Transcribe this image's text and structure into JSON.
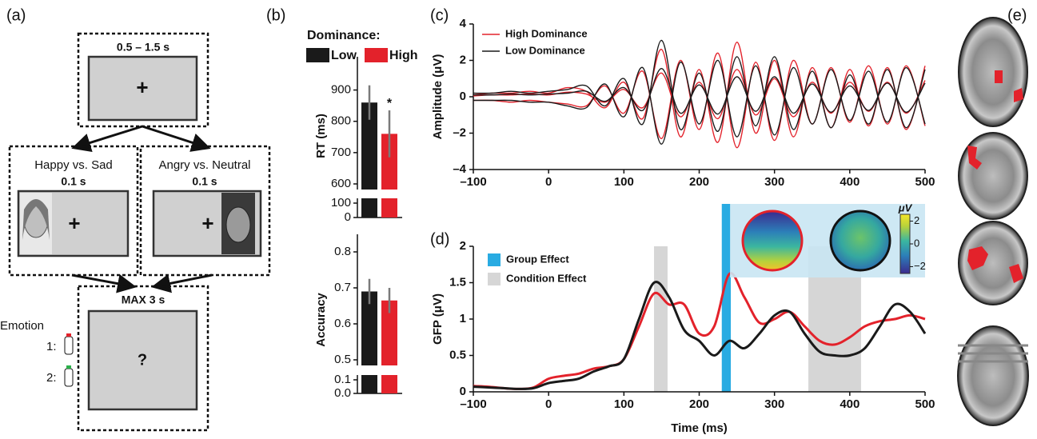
{
  "panel_labels": [
    "(a)",
    "(b)",
    "(c)",
    "(d)",
    "(e)"
  ],
  "diagram": {
    "fixation": {
      "duration": "0.5 – 1.5 s",
      "symbol": "+"
    },
    "stimuli": [
      {
        "task": "Happy vs. Sad",
        "duration": "0.1 s",
        "symbol": "+"
      },
      {
        "task": "Angry vs. Neutral",
        "duration": "0.1 s",
        "symbol": "+"
      }
    ],
    "response": {
      "duration": "MAX 3 s",
      "symbol": "?",
      "label": "Emotion",
      "keys": [
        "1:",
        "2:"
      ]
    }
  },
  "topomap": {
    "unit": "μV",
    "clim": [
      -2.6,
      2.6
    ],
    "ticks": [
      2,
      0,
      {
        "value": -2,
        "label": "−2"
      }
    ]
  },
  "chart_data": [
    {
      "type": "bar",
      "legend_title": "Dominance:",
      "categories": [
        "Low",
        "High"
      ],
      "colors": [
        "#1a1a1a",
        "#e3222b"
      ],
      "ylabel": "RT (ms)",
      "values": [
        860,
        760
      ],
      "errors": [
        55,
        75
      ],
      "ylim": [
        600,
        950
      ],
      "yticks": [
        600,
        700,
        800,
        900
      ],
      "break_ylim": [
        0,
        100
      ],
      "break_yticks": [
        0,
        100
      ],
      "annotations": [
        {
          "text": "*",
          "category": "High"
        }
      ]
    },
    {
      "type": "bar",
      "ylabel": "Accuracy",
      "values": [
        0.69,
        0.665
      ],
      "errors": [
        0.035,
        0.035
      ],
      "ylim": [
        0.5,
        0.8
      ],
      "yticks": [
        0.5,
        0.6,
        0.7,
        0.8
      ],
      "break_ylim": [
        0,
        0.1
      ],
      "break_yticks": [
        {
          "value": 0,
          "label": "0.0"
        },
        0.1
      ]
    },
    {
      "type": "butterfly",
      "ylabel": "Amplitude (μV)",
      "x": [
        -100,
        -75,
        -50,
        -25,
        0,
        25,
        50,
        75,
        100,
        125,
        150,
        175,
        200,
        225,
        250,
        275,
        300,
        325,
        350,
        375,
        400,
        425,
        450,
        475,
        500
      ],
      "xlim": [
        -100,
        500
      ],
      "xticks": [
        {
          "value": -100,
          "label": "–100"
        },
        0,
        100,
        200,
        300,
        400,
        500
      ],
      "ylim": [
        -4,
        4
      ],
      "yticks": [
        {
          "value": -4,
          "label": "–4"
        },
        {
          "value": -2,
          "label": "–2"
        },
        0,
        2,
        4
      ],
      "series": [
        {
          "name": "High Dominance",
          "color": "#e3222b",
          "channels": [
            [
              0.1,
              0.2,
              0.2,
              0.3,
              0.2,
              0.5,
              0.3,
              -0.6,
              0.8,
              -1.2,
              2.6,
              -2.2,
              1.5,
              -2.5,
              3.0,
              -2.0,
              2.0,
              -2.2,
              1.6,
              -1.7,
              1.5,
              -1.6,
              1.6,
              -1.8,
              1.7
            ],
            [
              -0.2,
              -0.2,
              -0.3,
              -0.2,
              -0.3,
              -0.4,
              -0.5,
              0.6,
              -0.9,
              1.4,
              -2.3,
              2.0,
              -1.8,
              2.4,
              -2.8,
              1.9,
              -2.4,
              2.0,
              -1.5,
              1.6,
              -1.4,
              1.7,
              -1.5,
              1.7,
              -1.6
            ],
            [
              0.05,
              0.1,
              0.1,
              0.15,
              0.1,
              0.25,
              0.15,
              -0.3,
              0.4,
              -0.6,
              1.3,
              -1.1,
              0.8,
              -1.2,
              1.5,
              -1.0,
              1.0,
              -1.1,
              0.8,
              -0.9,
              0.8,
              -0.8,
              0.8,
              -0.9,
              0.9
            ]
          ]
        },
        {
          "name": "Low Dominance",
          "color": "#1a1a1a",
          "channels": [
            [
              0.2,
              0.2,
              0.3,
              0.2,
              0.3,
              0.4,
              0.6,
              -0.5,
              1.0,
              -1.5,
              3.1,
              -1.8,
              1.3,
              -1.9,
              2.2,
              -1.6,
              2.2,
              -1.8,
              1.4,
              -1.7,
              1.2,
              -1.5,
              1.5,
              -1.7,
              1.5
            ],
            [
              -0.2,
              -0.2,
              -0.2,
              -0.3,
              -0.3,
              -0.5,
              -0.6,
              0.7,
              -1.1,
              1.6,
              -2.6,
              1.9,
              -1.5,
              2.0,
              -2.2,
              1.7,
              -2.1,
              1.6,
              -1.5,
              1.5,
              -1.3,
              1.4,
              -1.4,
              1.6,
              -1.5
            ],
            [
              0.1,
              0.1,
              0.15,
              0.1,
              0.15,
              0.2,
              0.3,
              -0.25,
              0.5,
              -0.75,
              1.55,
              -0.9,
              0.65,
              -0.95,
              1.1,
              -0.8,
              1.1,
              -0.9,
              0.7,
              -0.85,
              0.6,
              -0.75,
              0.75,
              -0.85,
              0.75
            ]
          ]
        }
      ]
    },
    {
      "type": "line",
      "ylabel": "GFP (μV)",
      "xlabel": "Time (ms)",
      "x": [
        -100,
        -80,
        -60,
        -40,
        -20,
        0,
        20,
        40,
        60,
        80,
        100,
        120,
        140,
        160,
        180,
        200,
        220,
        240,
        260,
        280,
        300,
        320,
        340,
        360,
        380,
        400,
        420,
        440,
        460,
        480,
        500
      ],
      "xlim": [
        -100,
        500
      ],
      "xticks": [
        {
          "value": -100,
          "label": "–100"
        },
        0,
        100,
        200,
        300,
        400,
        500
      ],
      "ylim": [
        0,
        2
      ],
      "yticks": [
        0,
        0.5,
        1,
        1.5,
        2
      ],
      "series": [
        {
          "name": "High Dominance",
          "color": "#e3222b",
          "values": [
            0.08,
            0.07,
            0.05,
            0.04,
            0.06,
            0.18,
            0.22,
            0.25,
            0.32,
            0.35,
            0.45,
            0.9,
            1.35,
            1.2,
            1.2,
            0.8,
            0.9,
            1.62,
            1.3,
            0.95,
            1.0,
            1.1,
            0.9,
            0.7,
            0.65,
            0.75,
            0.9,
            0.97,
            1.0,
            1.05,
            1.0
          ]
        },
        {
          "name": "Low Dominance",
          "color": "#1a1a1a",
          "values": [
            0.07,
            0.06,
            0.05,
            0.04,
            0.05,
            0.12,
            0.15,
            0.18,
            0.28,
            0.35,
            0.45,
            1.0,
            1.5,
            1.3,
            0.85,
            0.7,
            0.5,
            0.7,
            0.6,
            0.8,
            1.05,
            1.1,
            0.8,
            0.55,
            0.5,
            0.5,
            0.6,
            0.9,
            1.2,
            1.1,
            0.8
          ]
        }
      ],
      "highlights": [
        {
          "name": "Group Effect",
          "color": "#29abe2",
          "ranges": [
            [
              230,
              242
            ]
          ]
        },
        {
          "name": "Condition Effect",
          "color": "#d6d6d6",
          "ranges": [
            [
              140,
              158
            ],
            [
              345,
              415
            ]
          ]
        }
      ]
    }
  ]
}
